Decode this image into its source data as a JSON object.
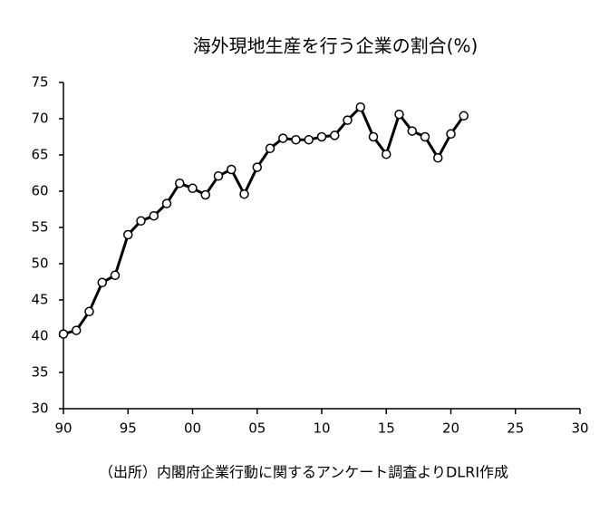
{
  "chart_data": {
    "type": "line",
    "title": "海外現地生産を行う企業の割合(%)",
    "note": "（出所）内閣府企業行動に関するアンケート調査よりDLRI作成",
    "x": [
      1990,
      1991,
      1992,
      1993,
      1994,
      1995,
      1996,
      1997,
      1998,
      1999,
      2000,
      2001,
      2002,
      2003,
      2004,
      2005,
      2006,
      2007,
      2008,
      2009,
      2010,
      2011,
      2012,
      2013,
      2014,
      2015,
      2016,
      2017,
      2018,
      2019,
      2020,
      2021
    ],
    "series": [
      {
        "color": "#000000",
        "marker_fill": "#ffffff",
        "values": [
          40.3,
          40.8,
          43.4,
          47.4,
          48.4,
          54.0,
          55.9,
          56.6,
          58.3,
          61.1,
          60.4,
          59.5,
          62.1,
          63.0,
          59.6,
          63.3,
          65.9,
          67.3,
          67.1,
          67.1,
          67.5,
          67.7,
          69.8,
          71.6,
          67.5,
          65.1,
          70.6,
          68.3,
          67.5,
          64.6,
          67.9,
          70.4
        ]
      }
    ],
    "xlim": [
      1990,
      2030
    ],
    "xticks": [
      {
        "value": 1990,
        "label": "90"
      },
      {
        "value": 1995,
        "label": "95"
      },
      {
        "value": 2000,
        "label": "00"
      },
      {
        "value": 2005,
        "label": "05"
      },
      {
        "value": 2010,
        "label": "10"
      },
      {
        "value": 2015,
        "label": "15"
      },
      {
        "value": 2020,
        "label": "20"
      },
      {
        "value": 2025,
        "label": "25"
      },
      {
        "value": 2030,
        "label": "30"
      }
    ],
    "ylim": [
      30,
      75
    ],
    "yticks": [
      30,
      35,
      40,
      45,
      50,
      55,
      60,
      65,
      70,
      75
    ],
    "grid": false
  }
}
